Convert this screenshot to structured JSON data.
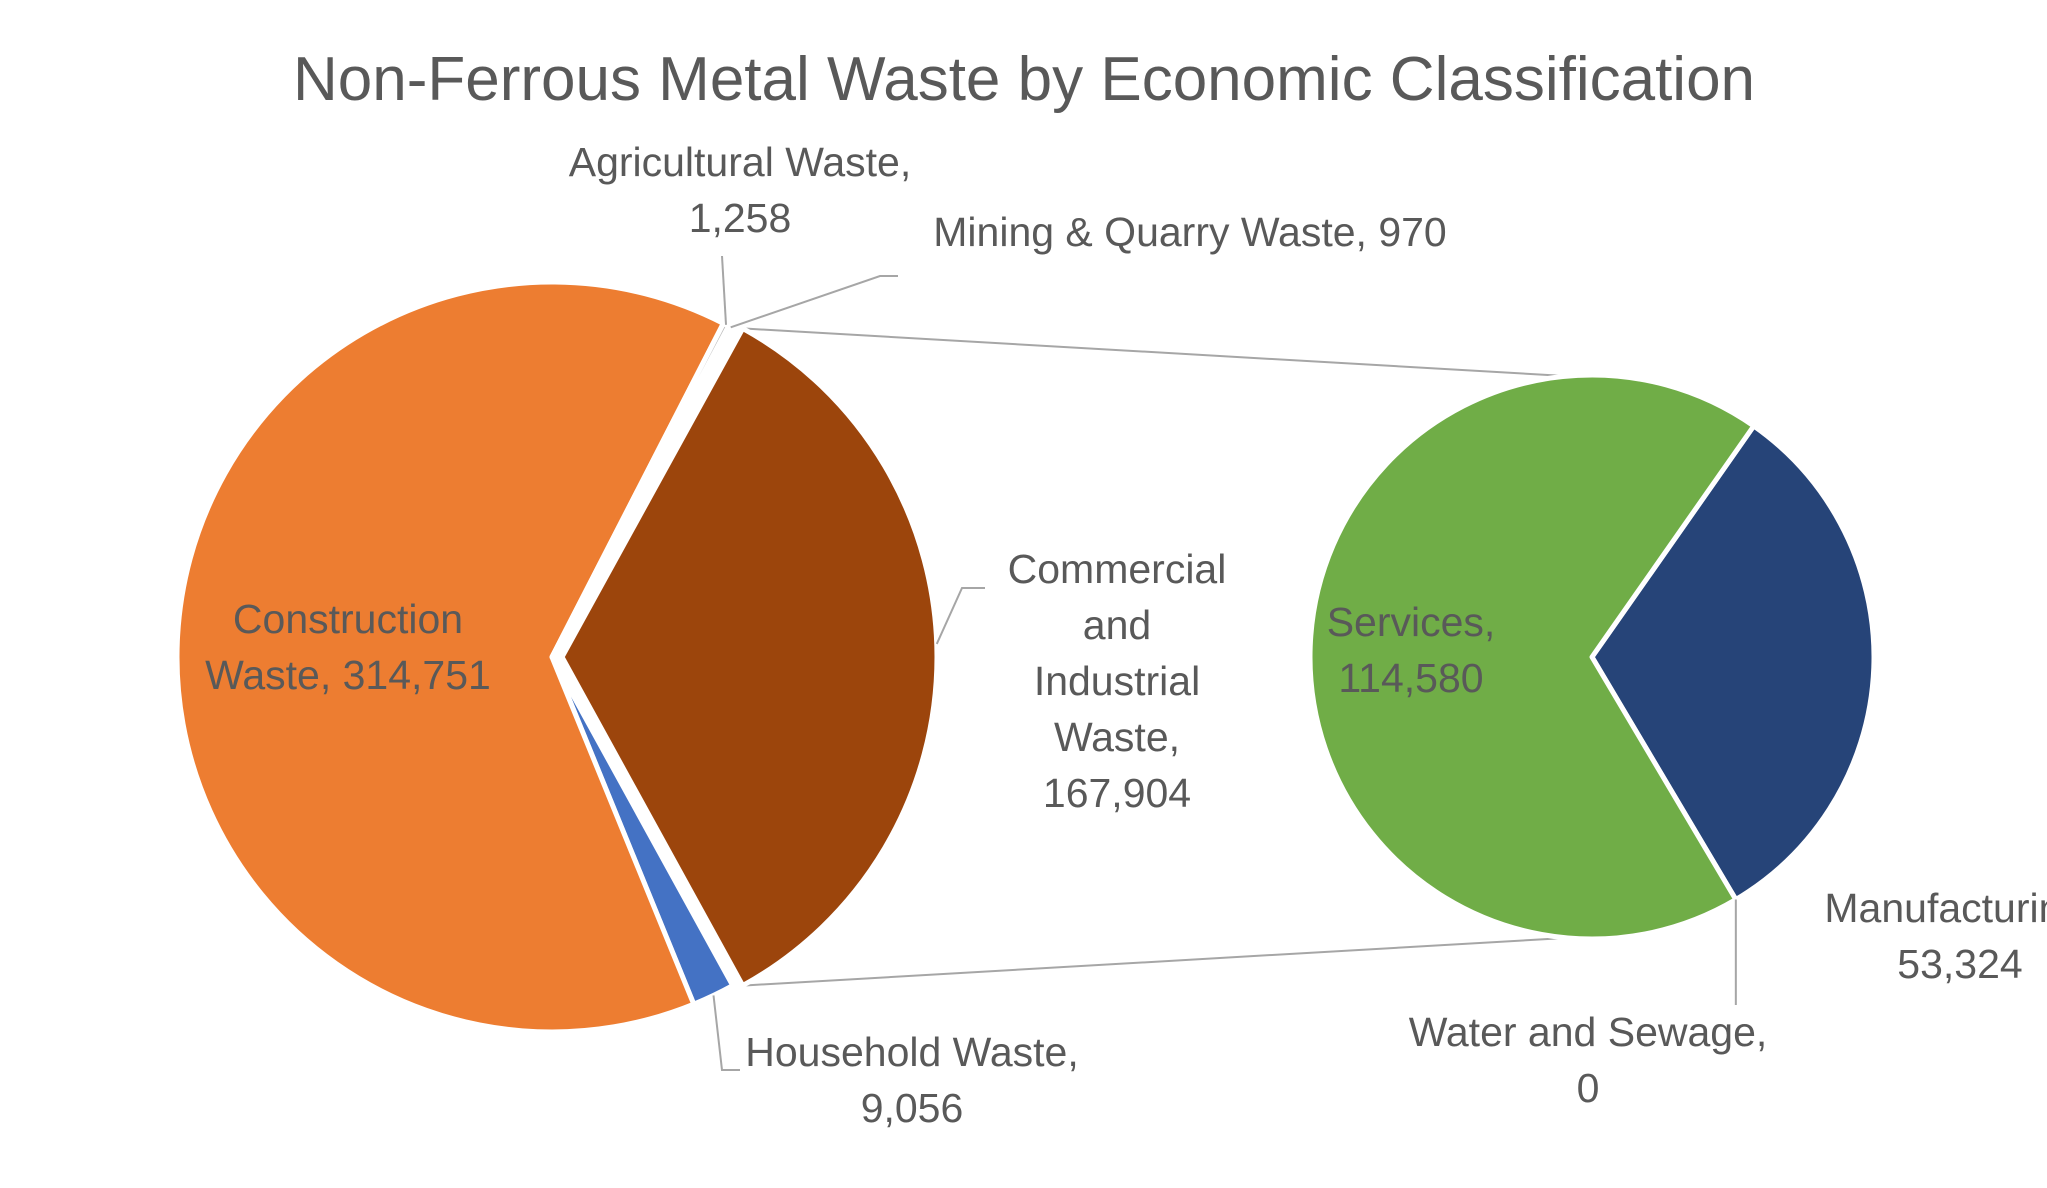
{
  "chart_data": {
    "type": "bar-of-pie",
    "title": "Non-Ferrous Metal Waste by Economic Classification",
    "main_pie": {
      "slices": [
        {
          "name": "Commercial and Industrial Waste",
          "value": 167904,
          "label": [
            "Commercial",
            "and",
            "Industrial",
            "Waste,",
            "167,904"
          ],
          "color": "#9c450c"
        },
        {
          "name": "Household Waste",
          "value": 9056,
          "label": [
            "Household Waste,",
            "9,056"
          ],
          "color": "#4472c4"
        },
        {
          "name": "Construction Waste",
          "value": 314751,
          "label": [
            "Construction",
            "Waste, 314,751"
          ],
          "color": "#ed7d31"
        },
        {
          "name": "Agricultural Waste",
          "value": 1258,
          "label": [
            "Agricultural Waste,",
            "1,258"
          ],
          "color": "#bdbdbd"
        },
        {
          "name": "Mining & Quarry Waste",
          "value": 970,
          "label": [
            "Mining & Quarry Waste, 970"
          ],
          "color": "#8faadc"
        }
      ]
    },
    "secondary_pie": {
      "breakdown_of": "Commercial and Industrial Waste",
      "slices": [
        {
          "name": "Manufacturing",
          "value": 53324,
          "label": [
            "Manufacturing,",
            "53,324"
          ],
          "color": "#264478"
        },
        {
          "name": "Water and Sewage",
          "value": 0,
          "label": [
            "Water and Sewage,",
            "0"
          ],
          "color": "#a5a5a5"
        },
        {
          "name": "Services",
          "value": 114580,
          "label": [
            "Services,",
            "114,580"
          ],
          "color": "#70ad47"
        }
      ]
    }
  }
}
